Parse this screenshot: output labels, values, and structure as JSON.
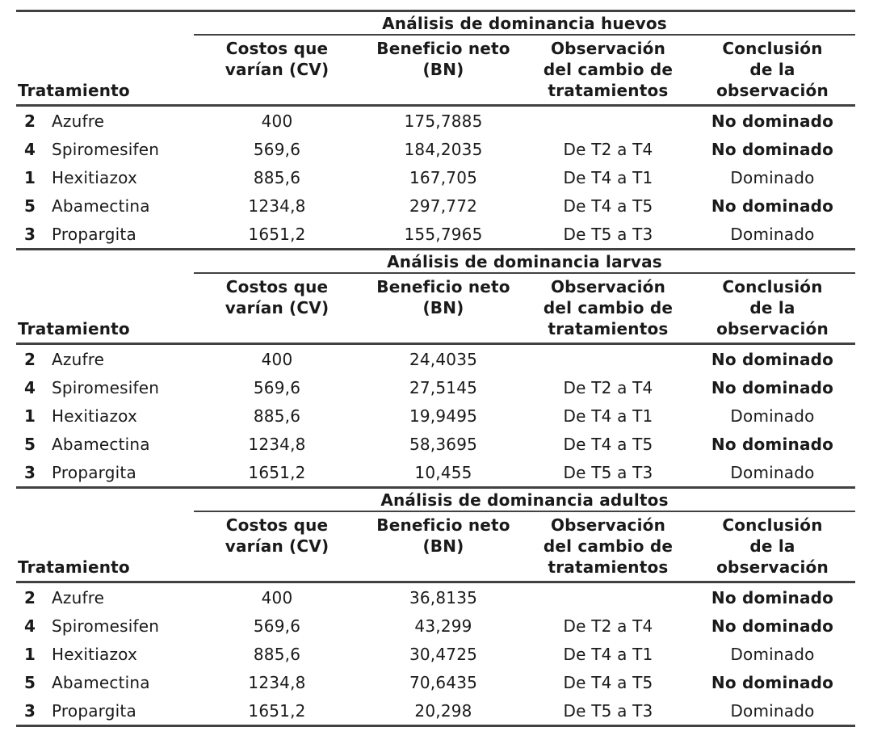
{
  "page": {
    "background": "#ffffff",
    "rule_color": "#414141",
    "text_color": "#1a1a1a"
  },
  "tables": [
    {
      "title": "Análisis de dominancia huevos",
      "headers": {
        "treatment": "Tratamiento",
        "cv": "Costos que\nvarían (CV)",
        "bn": "Beneficio neto\n(BN)",
        "obs": "Observación\ndel cambio de\ntratamientos",
        "concl": "Conclusión\nde la\nobservación"
      },
      "rows": [
        {
          "num": "2",
          "name": "Azufre",
          "cv": "400",
          "bn": "175,7885",
          "obs": "",
          "concl": "No dominado",
          "concl_bold": true
        },
        {
          "num": "4",
          "name": "Spiromesifen",
          "cv": "569,6",
          "bn": "184,2035",
          "obs": "De T2 a T4",
          "concl": "No dominado",
          "concl_bold": true
        },
        {
          "num": "1",
          "name": "Hexitiazox",
          "cv": "885,6",
          "bn": "167,705",
          "obs": "De T4 a T1",
          "concl": "Dominado",
          "concl_bold": false
        },
        {
          "num": "5",
          "name": "Abamectina",
          "cv": "1234,8",
          "bn": "297,772",
          "obs": "De T4 a T5",
          "concl": "No dominado",
          "concl_bold": true
        },
        {
          "num": "3",
          "name": "Propargita",
          "cv": "1651,2",
          "bn": "155,7965",
          "obs": "De T5 a T3",
          "concl": "Dominado",
          "concl_bold": false
        }
      ]
    },
    {
      "title": "Análisis de dominancia larvas",
      "headers": {
        "treatment": "Tratamiento",
        "cv": "Costos que\nvarían (CV)",
        "bn": "Beneficio neto\n(BN)",
        "obs": "Observación\ndel cambio de\ntratamientos",
        "concl": "Conclusión\nde la\nobservación"
      },
      "rows": [
        {
          "num": "2",
          "name": "Azufre",
          "cv": "400",
          "bn": "24,4035",
          "obs": "",
          "concl": "No dominado",
          "concl_bold": true
        },
        {
          "num": "4",
          "name": "Spiromesifen",
          "cv": "569,6",
          "bn": "27,5145",
          "obs": "De T2 a T4",
          "concl": "No dominado",
          "concl_bold": true
        },
        {
          "num": "1",
          "name": "Hexitiazox",
          "cv": "885,6",
          "bn": "19,9495",
          "obs": "De T4 a T1",
          "concl": "Dominado",
          "concl_bold": false
        },
        {
          "num": "5",
          "name": "Abamectina",
          "cv": "1234,8",
          "bn": "58,3695",
          "obs": "De T4 a T5",
          "concl": "No dominado",
          "concl_bold": true
        },
        {
          "num": "3",
          "name": "Propargita",
          "cv": "1651,2",
          "bn": "10,455",
          "obs": "De T5 a T3",
          "concl": "Dominado",
          "concl_bold": false
        }
      ]
    },
    {
      "title": "Análisis de dominancia adultos",
      "headers": {
        "treatment": "Tratamiento",
        "cv": "Costos que\nvarían (CV)",
        "bn": "Beneficio neto\n(BN)",
        "obs": "Observación\ndel cambio de\ntratamientos",
        "concl": "Conclusión\nde la\nobservación"
      },
      "rows": [
        {
          "num": "2",
          "name": "Azufre",
          "cv": "400",
          "bn": "36,8135",
          "obs": "",
          "concl": "No dominado",
          "concl_bold": true
        },
        {
          "num": "4",
          "name": "Spiromesifen",
          "cv": "569,6",
          "bn": "43,299",
          "obs": "De T2 a T4",
          "concl": "No dominado",
          "concl_bold": true
        },
        {
          "num": "1",
          "name": "Hexitiazox",
          "cv": "885,6",
          "bn": "30,4725",
          "obs": "De T4 a T1",
          "concl": "Dominado",
          "concl_bold": false
        },
        {
          "num": "5",
          "name": "Abamectina",
          "cv": "1234,8",
          "bn": "70,6435",
          "obs": "De T4 a T5",
          "concl": "No dominado",
          "concl_bold": true
        },
        {
          "num": "3",
          "name": "Propargita",
          "cv": "1651,2",
          "bn": "20,298",
          "obs": "De T5 a T3",
          "concl": "Dominado",
          "concl_bold": false
        }
      ]
    }
  ]
}
